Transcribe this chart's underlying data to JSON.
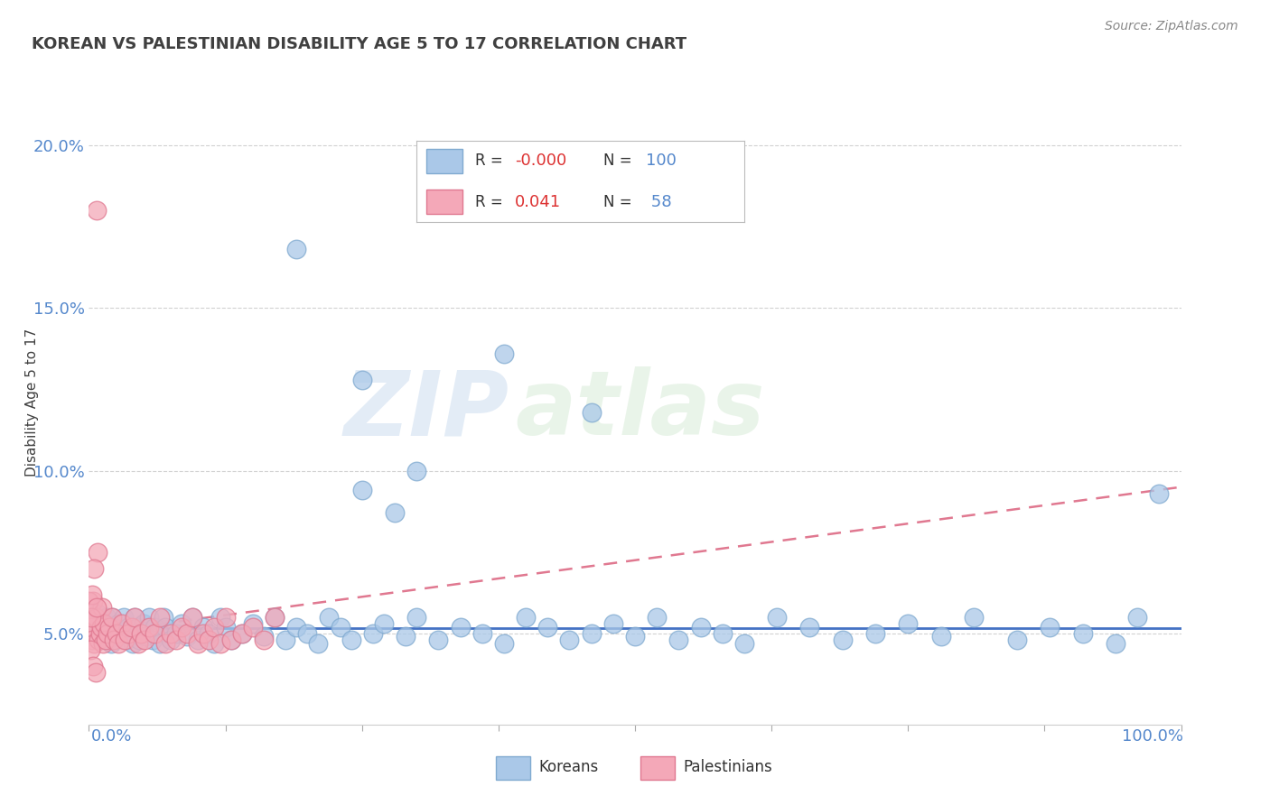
{
  "title": "KOREAN VS PALESTINIAN DISABILITY AGE 5 TO 17 CORRELATION CHART",
  "source": "Source: ZipAtlas.com",
  "ylabel": "Disability Age 5 to 17",
  "xmin": 0.0,
  "xmax": 1.0,
  "ymin": 0.022,
  "ymax": 0.215,
  "yticks": [
    0.05,
    0.1,
    0.15,
    0.2
  ],
  "ytick_labels": [
    "5.0%",
    "10.0%",
    "15.0%",
    "20.0%"
  ],
  "watermark_line1": "ZIP",
  "watermark_line2": "atlas",
  "legend_r_korean": "-0.000",
  "legend_n_korean": "100",
  "legend_r_palestinian": "0.041",
  "legend_n_palestinian": "58",
  "korean_fill": "#aac8e8",
  "palestinian_fill": "#f4a8b8",
  "korean_edge": "#80aad0",
  "palestinian_edge": "#e07890",
  "korean_line_color": "#4472C4",
  "palestinian_line_color": "#e07890",
  "grid_color": "#cccccc",
  "title_color": "#404040",
  "axis_tick_color": "#5588cc",
  "r_color": "#dd3333",
  "n_color": "#5588cc",
  "source_color": "#888888",
  "koreans_x": [
    0.003,
    0.005,
    0.007,
    0.008,
    0.01,
    0.011,
    0.012,
    0.013,
    0.015,
    0.016,
    0.017,
    0.018,
    0.019,
    0.02,
    0.021,
    0.022,
    0.023,
    0.025,
    0.027,
    0.03,
    0.032,
    0.034,
    0.036,
    0.038,
    0.04,
    0.042,
    0.044,
    0.046,
    0.048,
    0.05,
    0.052,
    0.055,
    0.058,
    0.06,
    0.063,
    0.065,
    0.068,
    0.07,
    0.075,
    0.08,
    0.085,
    0.09,
    0.095,
    0.1,
    0.105,
    0.11,
    0.115,
    0.12,
    0.125,
    0.13,
    0.14,
    0.15,
    0.16,
    0.17,
    0.18,
    0.19,
    0.2,
    0.21,
    0.22,
    0.23,
    0.24,
    0.25,
    0.26,
    0.27,
    0.28,
    0.29,
    0.3,
    0.32,
    0.34,
    0.36,
    0.38,
    0.4,
    0.42,
    0.44,
    0.46,
    0.48,
    0.5,
    0.52,
    0.54,
    0.56,
    0.58,
    0.6,
    0.63,
    0.66,
    0.69,
    0.72,
    0.75,
    0.78,
    0.81,
    0.85,
    0.88,
    0.91,
    0.94,
    0.96,
    0.98,
    0.25,
    0.3,
    0.19,
    0.38,
    0.46
  ],
  "koreans_y": [
    0.055,
    0.052,
    0.05,
    0.056,
    0.048,
    0.054,
    0.051,
    0.053,
    0.049,
    0.055,
    0.048,
    0.052,
    0.05,
    0.047,
    0.055,
    0.052,
    0.048,
    0.05,
    0.053,
    0.049,
    0.055,
    0.048,
    0.052,
    0.05,
    0.047,
    0.055,
    0.052,
    0.048,
    0.05,
    0.053,
    0.049,
    0.055,
    0.048,
    0.052,
    0.05,
    0.047,
    0.055,
    0.052,
    0.048,
    0.05,
    0.053,
    0.049,
    0.055,
    0.048,
    0.052,
    0.05,
    0.047,
    0.055,
    0.052,
    0.048,
    0.05,
    0.053,
    0.049,
    0.055,
    0.048,
    0.052,
    0.05,
    0.047,
    0.055,
    0.052,
    0.048,
    0.094,
    0.05,
    0.053,
    0.087,
    0.049,
    0.055,
    0.048,
    0.052,
    0.05,
    0.047,
    0.055,
    0.052,
    0.048,
    0.05,
    0.053,
    0.049,
    0.055,
    0.048,
    0.052,
    0.05,
    0.047,
    0.055,
    0.052,
    0.048,
    0.05,
    0.053,
    0.049,
    0.055,
    0.048,
    0.052,
    0.05,
    0.047,
    0.055,
    0.093,
    0.128,
    0.1,
    0.168,
    0.136,
    0.118
  ],
  "palestinians_x": [
    0.0,
    0.001,
    0.002,
    0.003,
    0.004,
    0.005,
    0.006,
    0.007,
    0.008,
    0.009,
    0.01,
    0.011,
    0.012,
    0.013,
    0.014,
    0.015,
    0.017,
    0.019,
    0.021,
    0.023,
    0.025,
    0.027,
    0.03,
    0.033,
    0.036,
    0.039,
    0.042,
    0.045,
    0.048,
    0.051,
    0.055,
    0.06,
    0.065,
    0.07,
    0.075,
    0.08,
    0.085,
    0.09,
    0.095,
    0.1,
    0.105,
    0.11,
    0.115,
    0.12,
    0.125,
    0.13,
    0.14,
    0.15,
    0.16,
    0.17,
    0.0,
    0.001,
    0.002,
    0.003,
    0.004,
    0.005,
    0.006,
    0.007
  ],
  "palestinians_y": [
    0.054,
    0.05,
    0.052,
    0.048,
    0.06,
    0.047,
    0.055,
    0.18,
    0.075,
    0.048,
    0.05,
    0.052,
    0.058,
    0.047,
    0.053,
    0.048,
    0.05,
    0.052,
    0.055,
    0.048,
    0.05,
    0.047,
    0.053,
    0.048,
    0.05,
    0.052,
    0.055,
    0.047,
    0.05,
    0.048,
    0.052,
    0.05,
    0.055,
    0.047,
    0.05,
    0.048,
    0.052,
    0.05,
    0.055,
    0.047,
    0.05,
    0.048,
    0.052,
    0.047,
    0.055,
    0.048,
    0.05,
    0.052,
    0.048,
    0.055,
    0.06,
    0.045,
    0.055,
    0.062,
    0.04,
    0.07,
    0.038,
    0.058
  ],
  "korean_trend_x": [
    0.0,
    1.0
  ],
  "korean_trend_y": [
    0.0516,
    0.0516
  ],
  "palestinian_trend_x": [
    0.0,
    1.0
  ],
  "palestinian_trend_y": [
    0.05,
    0.095
  ]
}
